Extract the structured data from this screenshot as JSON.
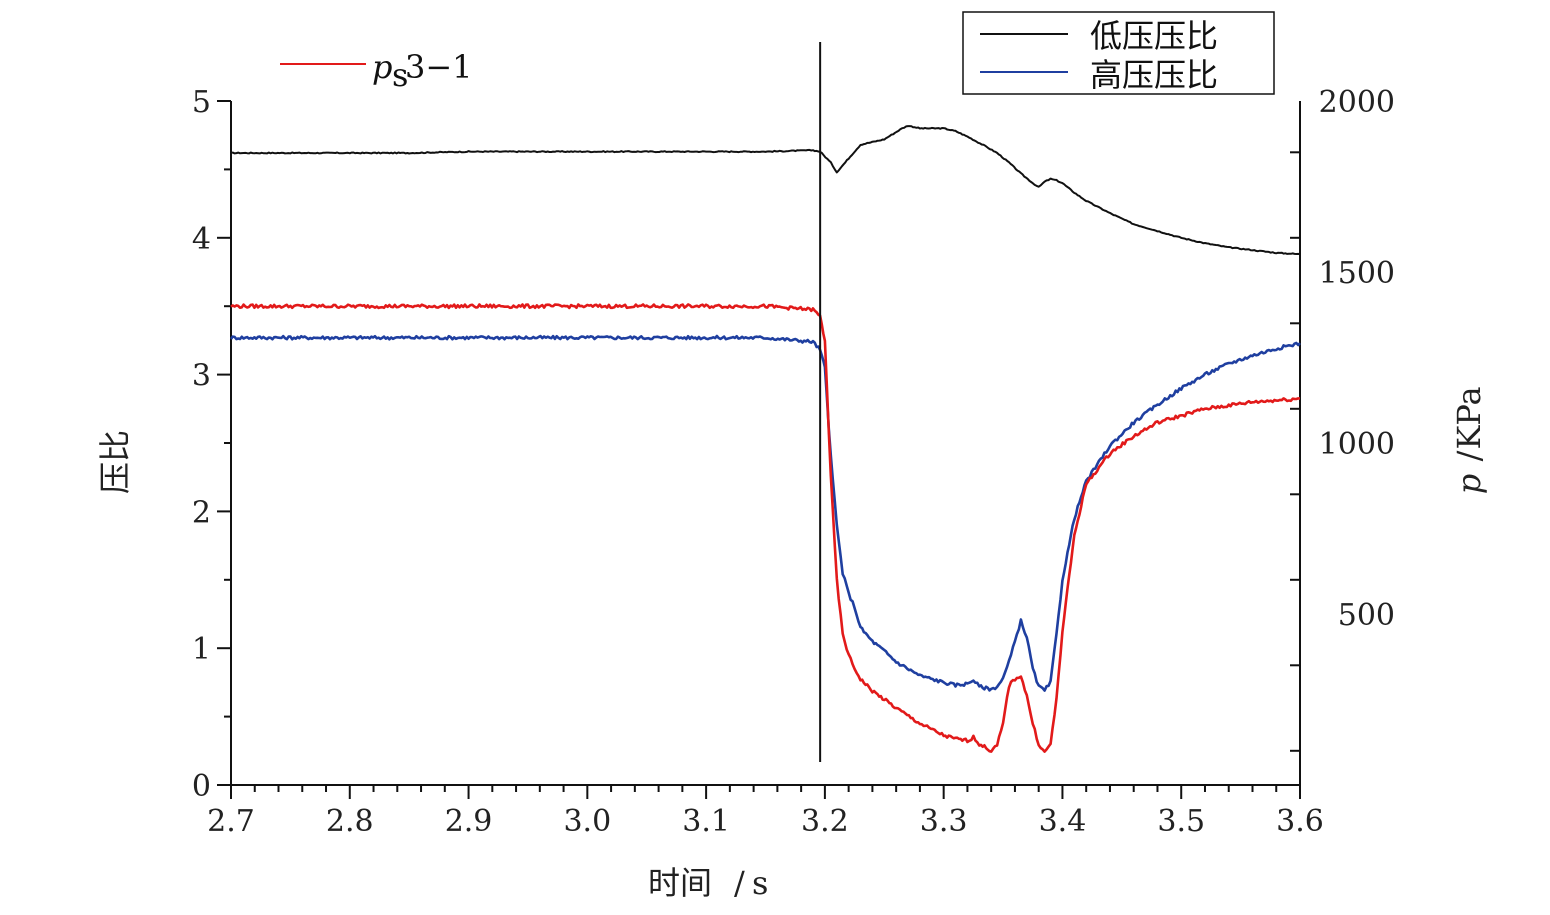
{
  "chart_data": {
    "type": "line",
    "xlabel": "时间",
    "xunit": "s",
    "xlabel_sep": "/",
    "ylabel_left": "压比",
    "ylabel_right_symbol": "p",
    "ylabel_right_sep": "/",
    "ylabel_right_unit": "KPa",
    "xlim": [
      2.7,
      3.6
    ],
    "ylim_left": [
      0,
      5
    ],
    "ylim_right": [
      0,
      2000
    ],
    "right_axis_display_min": 100,
    "x_ticks": [
      "2.7",
      "2.8",
      "2.9",
      "3.0",
      "3.1",
      "3.2",
      "3.3",
      "3.4",
      "3.5",
      "3.6"
    ],
    "x_tick_values": [
      2.7,
      2.8,
      2.9,
      3.0,
      3.1,
      3.2,
      3.3,
      3.4,
      3.5,
      3.6
    ],
    "y_left_ticks": [
      "0",
      "1",
      "2",
      "3",
      "4",
      "5"
    ],
    "y_left_tick_values": [
      0,
      1,
      2,
      3,
      4,
      5
    ],
    "y_right_ticks": [
      "500",
      "1000",
      "1500",
      "2000"
    ],
    "y_right_tick_values": [
      500,
      1000,
      1500,
      2000
    ],
    "grid": false,
    "legend_right_placement": "top-right",
    "legend_left_placement": "top-left",
    "vline_x": 3.196,
    "series": [
      {
        "name": "低压压比",
        "axis": "left",
        "color": "#111111",
        "x": [
          2.7,
          2.75,
          2.8,
          2.85,
          2.9,
          2.95,
          3.0,
          3.05,
          3.1,
          3.15,
          3.19,
          3.196,
          3.205,
          3.21,
          3.22,
          3.23,
          3.24,
          3.25,
          3.265,
          3.27,
          3.28,
          3.29,
          3.3,
          3.31,
          3.32,
          3.335,
          3.345,
          3.355,
          3.365,
          3.375,
          3.38,
          3.385,
          3.39,
          3.395,
          3.4,
          3.41,
          3.42,
          3.44,
          3.46,
          3.48,
          3.5,
          3.52,
          3.54,
          3.56,
          3.58,
          3.6
        ],
        "y": [
          4.62,
          4.62,
          4.62,
          4.62,
          4.63,
          4.63,
          4.63,
          4.63,
          4.63,
          4.63,
          4.64,
          4.63,
          4.55,
          4.48,
          4.58,
          4.68,
          4.7,
          4.72,
          4.8,
          4.82,
          4.8,
          4.8,
          4.8,
          4.78,
          4.74,
          4.67,
          4.62,
          4.55,
          4.47,
          4.4,
          4.37,
          4.41,
          4.43,
          4.42,
          4.4,
          4.33,
          4.27,
          4.18,
          4.1,
          4.05,
          4.0,
          3.96,
          3.93,
          3.91,
          3.89,
          3.88
        ]
      },
      {
        "name": "高压压比",
        "axis": "left",
        "color": "#1f3fa0",
        "x": [
          2.7,
          2.75,
          2.8,
          2.85,
          2.9,
          2.95,
          3.0,
          3.05,
          3.1,
          3.15,
          3.19,
          3.196,
          3.2,
          3.205,
          3.21,
          3.215,
          3.22,
          3.225,
          3.23,
          3.24,
          3.25,
          3.26,
          3.28,
          3.3,
          3.31,
          3.32,
          3.325,
          3.33,
          3.34,
          3.345,
          3.35,
          3.355,
          3.36,
          3.365,
          3.37,
          3.375,
          3.38,
          3.385,
          3.39,
          3.395,
          3.4,
          3.41,
          3.42,
          3.44,
          3.46,
          3.48,
          3.5,
          3.52,
          3.54,
          3.56,
          3.58,
          3.6
        ],
        "y": [
          3.27,
          3.27,
          3.27,
          3.27,
          3.27,
          3.27,
          3.27,
          3.27,
          3.27,
          3.27,
          3.24,
          3.18,
          3.05,
          2.4,
          1.9,
          1.55,
          1.4,
          1.3,
          1.15,
          1.05,
          0.98,
          0.9,
          0.8,
          0.75,
          0.73,
          0.74,
          0.77,
          0.72,
          0.7,
          0.72,
          0.78,
          0.9,
          1.05,
          1.2,
          1.08,
          0.85,
          0.72,
          0.69,
          0.75,
          1.1,
          1.5,
          1.95,
          2.22,
          2.48,
          2.65,
          2.78,
          2.9,
          3.0,
          3.08,
          3.14,
          3.19,
          3.23
        ]
      },
      {
        "name": "ps3-1",
        "axis": "right",
        "color": "#e21a1a",
        "x": [
          2.7,
          2.75,
          2.8,
          2.85,
          2.9,
          2.95,
          3.0,
          3.05,
          3.1,
          3.15,
          3.19,
          3.196,
          3.2,
          3.205,
          3.21,
          3.215,
          3.22,
          3.225,
          3.23,
          3.24,
          3.25,
          3.26,
          3.28,
          3.3,
          3.31,
          3.32,
          3.325,
          3.33,
          3.34,
          3.345,
          3.35,
          3.355,
          3.36,
          3.365,
          3.37,
          3.375,
          3.38,
          3.385,
          3.39,
          3.395,
          3.4,
          3.41,
          3.42,
          3.44,
          3.46,
          3.48,
          3.5,
          3.52,
          3.54,
          3.56,
          3.58,
          3.6
        ],
        "y": [
          1400,
          1400,
          1400,
          1400,
          1400,
          1400,
          1400,
          1400,
          1400,
          1400,
          1390,
          1370,
          1300,
          900,
          600,
          440,
          380,
          340,
          310,
          275,
          250,
          225,
          180,
          145,
          135,
          130,
          140,
          120,
          100,
          115,
          180,
          290,
          310,
          320,
          260,
          180,
          120,
          95,
          120,
          250,
          450,
          730,
          880,
          970,
          1020,
          1060,
          1080,
          1100,
          1110,
          1120,
          1125,
          1130
        ]
      }
    ],
    "legend_right_entries": [
      "低压压比",
      "高压压比"
    ],
    "legend_left_entry": {
      "symbol": "p",
      "subscript": "s",
      "suffix": "3−1"
    }
  }
}
